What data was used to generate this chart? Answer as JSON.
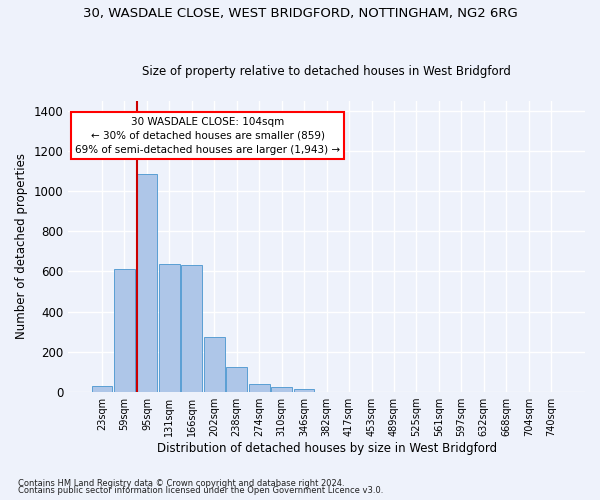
{
  "title1": "30, WASDALE CLOSE, WEST BRIDGFORD, NOTTINGHAM, NG2 6RG",
  "title2": "Size of property relative to detached houses in West Bridgford",
  "xlabel": "Distribution of detached houses by size in West Bridgford",
  "ylabel": "Number of detached properties",
  "bar_labels": [
    "23sqm",
    "59sqm",
    "95sqm",
    "131sqm",
    "166sqm",
    "202sqm",
    "238sqm",
    "274sqm",
    "310sqm",
    "346sqm",
    "382sqm",
    "417sqm",
    "453sqm",
    "489sqm",
    "525sqm",
    "561sqm",
    "597sqm",
    "632sqm",
    "668sqm",
    "704sqm",
    "740sqm"
  ],
  "bar_values": [
    30,
    610,
    1085,
    635,
    630,
    275,
    125,
    42,
    25,
    15,
    0,
    0,
    0,
    0,
    0,
    0,
    0,
    0,
    0,
    0,
    0
  ],
  "bar_color": "#aec6e8",
  "bar_edge_color": "#5a9fd4",
  "ylim": [
    0,
    1450
  ],
  "yticks": [
    0,
    200,
    400,
    600,
    800,
    1000,
    1200,
    1400
  ],
  "vline_color": "#cc0000",
  "annotation_box_text": "30 WASDALE CLOSE: 104sqm\n← 30% of detached houses are smaller (859)\n69% of semi-detached houses are larger (1,943) →",
  "footnote1": "Contains HM Land Registry data © Crown copyright and database right 2024.",
  "footnote2": "Contains public sector information licensed under the Open Government Licence v3.0.",
  "background_color": "#eef2fb",
  "grid_color": "#ffffff"
}
